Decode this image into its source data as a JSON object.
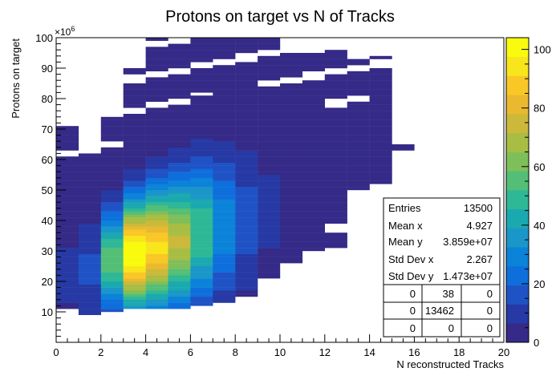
{
  "chart_data": {
    "type": "heatmap",
    "title": "Protons on target vs N of Tracks",
    "xlabel": "N reconstructed Tracks",
    "ylabel": "Protons on target",
    "y_multiplier_label": "×10",
    "y_multiplier_exp": "6",
    "xlim": [
      0,
      20
    ],
    "ylim": [
      0,
      100
    ],
    "zlim": [
      0,
      104
    ],
    "x_bin_width": 1,
    "y_bin_width": 1,
    "x_ticks": [
      0,
      2,
      4,
      6,
      8,
      10,
      12,
      14,
      16,
      18,
      20
    ],
    "y_ticks": [
      10,
      20,
      30,
      40,
      50,
      60,
      70,
      80,
      90,
      100
    ],
    "z_ticks": [
      0,
      20,
      40,
      60,
      80,
      100
    ],
    "palette": [
      "#352a87",
      "#2639a4",
      "#1f53c5",
      "#0e6fdc",
      "#0b83d9",
      "#1b96c9",
      "#1ba9b0",
      "#2eb896",
      "#53bf76",
      "#7fbf5a",
      "#a8bd44",
      "#ccb93a",
      "#eab92f",
      "#f9c726",
      "#f8e51b",
      "#f9fb0e"
    ],
    "cell_rows": [
      {
        "x": 0,
        "y_range": [
          11,
          73
        ],
        "peak_y": 22,
        "peak_z": 8,
        "spread_y": 14
      },
      {
        "x": 1,
        "y_range": [
          9,
          62
        ],
        "peak_y": 24,
        "peak_z": 14,
        "spread_y": 12
      },
      {
        "x": 2,
        "y_range": [
          10,
          75
        ],
        "peak_y": 27,
        "peak_z": 55,
        "spread_y": 11
      },
      {
        "x": 3,
        "y_range": [
          11,
          90
        ],
        "peak_y": 29,
        "peak_z": 104,
        "spread_y": 12
      },
      {
        "x": 4,
        "y_range": [
          11,
          100
        ],
        "peak_y": 31,
        "peak_z": 92,
        "spread_y": 13
      },
      {
        "x": 5,
        "y_range": [
          11,
          100
        ],
        "peak_y": 33,
        "peak_z": 72,
        "spread_y": 14
      },
      {
        "x": 6,
        "y_range": [
          12,
          100
        ],
        "peak_y": 36,
        "peak_z": 52,
        "spread_y": 15
      },
      {
        "x": 7,
        "y_range": [
          13,
          100
        ],
        "peak_y": 38,
        "peak_z": 30,
        "spread_y": 16
      },
      {
        "x": 8,
        "y_range": [
          15,
          100
        ],
        "peak_y": 40,
        "peak_z": 16,
        "spread_y": 17
      },
      {
        "x": 9,
        "y_range": [
          21,
          100
        ],
        "peak_y": 43,
        "peak_z": 8,
        "spread_y": 18
      },
      {
        "x": 10,
        "y_range": [
          26,
          97
        ],
        "peak_y": 45,
        "peak_z": 4,
        "spread_y": 18
      },
      {
        "x": 11,
        "y_range": [
          30,
          95
        ],
        "peak_y": 50,
        "peak_z": 2,
        "spread_y": 18
      },
      {
        "x": 12,
        "y_range": [
          31,
          96
        ],
        "peak_y": 55,
        "peak_z": 1,
        "spread_y": 16
      },
      {
        "x": 13,
        "y_range": [
          48,
          93
        ],
        "peak_y": 65,
        "peak_z": 1,
        "spread_y": 14
      },
      {
        "x": 14,
        "y_range": [
          52,
          94
        ],
        "peak_y": 70,
        "peak_z": 1,
        "spread_y": 12
      },
      {
        "x": 15,
        "y_range": [
          63,
          65
        ],
        "peak_y": 64,
        "peak_z": 1,
        "spread_y": 1
      }
    ],
    "stats": {
      "rows": [
        {
          "label": "Entries",
          "value": "13500"
        },
        {
          "label": "Mean x",
          "value": "4.927"
        },
        {
          "label": "Mean y",
          "value": "3.859e+07"
        },
        {
          "label": "Std Dev x",
          "value": "2.267"
        },
        {
          "label": "Std Dev y",
          "value": "1.473e+07"
        }
      ],
      "grid": [
        [
          "0",
          "38",
          "0"
        ],
        [
          "0",
          "13462",
          "0"
        ],
        [
          "0",
          "0",
          "0"
        ]
      ]
    }
  }
}
